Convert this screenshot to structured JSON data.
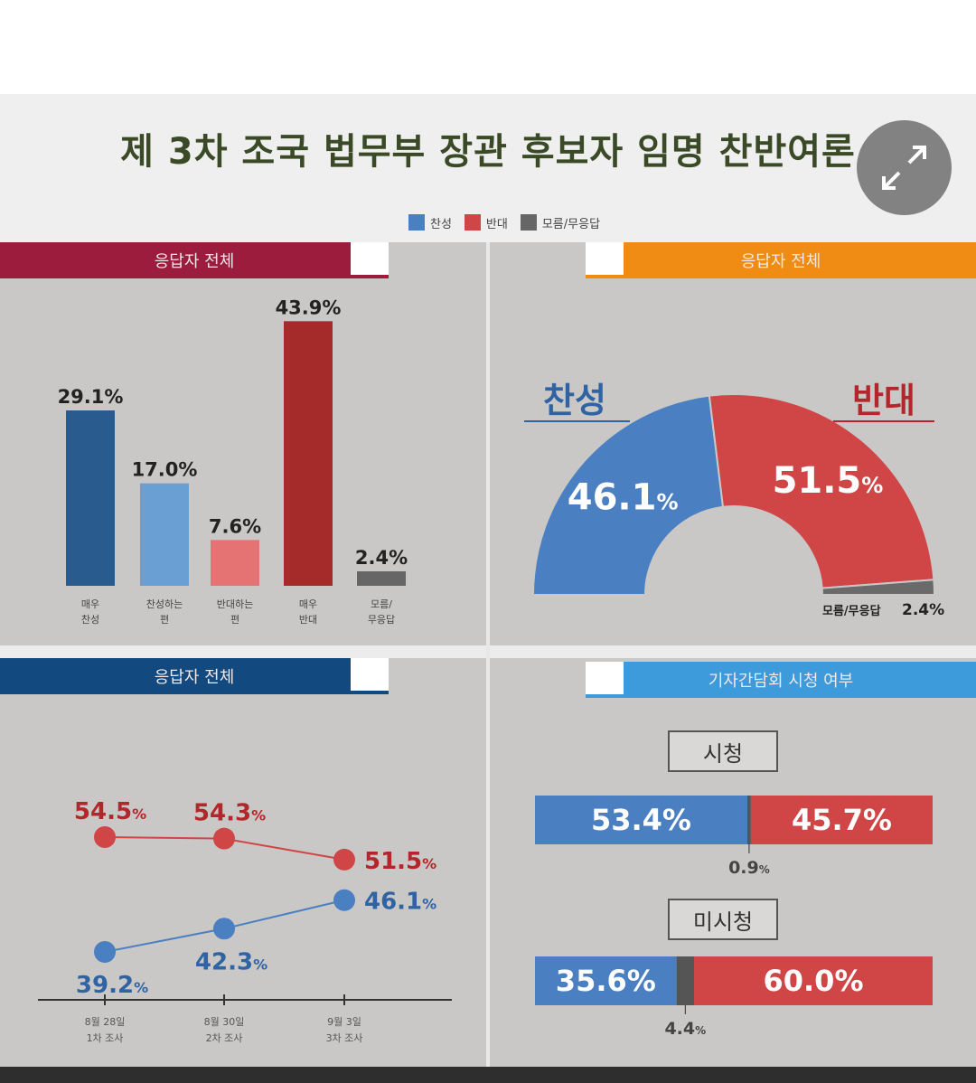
{
  "title": "제 3차 조국 법무부 장관 후보자 임명 찬반여론",
  "legend": [
    {
      "label": "찬성",
      "color": "#4a7fc1"
    },
    {
      "label": "반대",
      "color": "#d04545"
    },
    {
      "label": "모름/무응답",
      "color": "#666666"
    }
  ],
  "panels": {
    "top_left_header": "응답자 전체",
    "top_right_header": "응답자 전체",
    "bottom_left_header": "응답자 전체",
    "bottom_right_header": "기자간담회 시청 여부"
  },
  "chart_data": [
    {
      "type": "bar",
      "categories": [
        "매우 찬성",
        "찬성하는 편",
        "반대하는 편",
        "매우 반대",
        "모름/ 무응답"
      ],
      "values": [
        29.1,
        17.0,
        7.6,
        43.9,
        2.4
      ],
      "value_labels": [
        "29.1%",
        "17.0%",
        "7.6%",
        "43.9%",
        "2.4%"
      ],
      "colors": [
        "#2a5b8f",
        "#6a9fd4",
        "#e57373",
        "#a52a2a",
        "#666666"
      ],
      "ylim": [
        0,
        45
      ]
    },
    {
      "type": "pie",
      "shape": "semi-donut",
      "labels": [
        "찬성",
        "반대",
        "모름/무응답"
      ],
      "values": [
        46.1,
        51.5,
        2.4
      ],
      "value_labels": [
        "46.1",
        "51.5",
        "2.4%"
      ],
      "percent_sign": "%",
      "colors": [
        "#4a7fc1",
        "#d04545",
        "#6a6a6a"
      ]
    },
    {
      "type": "line",
      "x": [
        "8월 28일 1차 조사",
        "8월 30일 2차 조사",
        "9월 3일 3차 조사"
      ],
      "series": [
        {
          "name": "반대",
          "values": [
            54.5,
            54.3,
            51.5
          ],
          "labels": [
            "54.5",
            "54.3",
            "51.5"
          ],
          "color": "#d04545"
        },
        {
          "name": "찬성",
          "values": [
            39.2,
            42.3,
            46.1
          ],
          "labels": [
            "39.2",
            "42.3",
            "46.1"
          ],
          "color": "#4a7fc1"
        }
      ],
      "percent_sign": "%"
    },
    {
      "type": "bar",
      "orientation": "horizontal-stacked",
      "categories": [
        "시청",
        "미시청"
      ],
      "series": [
        {
          "name": "찬성",
          "values": [
            53.4,
            35.6
          ],
          "labels": [
            "53.4%",
            "35.6%"
          ],
          "color": "#4a7fc1"
        },
        {
          "name": "모름/무응답",
          "values": [
            0.9,
            4.4
          ],
          "labels": [
            "0.9",
            "4.4"
          ],
          "color": "#555555"
        },
        {
          "name": "반대",
          "values": [
            45.7,
            60.0
          ],
          "labels": [
            "45.7%",
            "60.0%"
          ],
          "color": "#d04545"
        }
      ],
      "percent_sign": "%"
    }
  ]
}
